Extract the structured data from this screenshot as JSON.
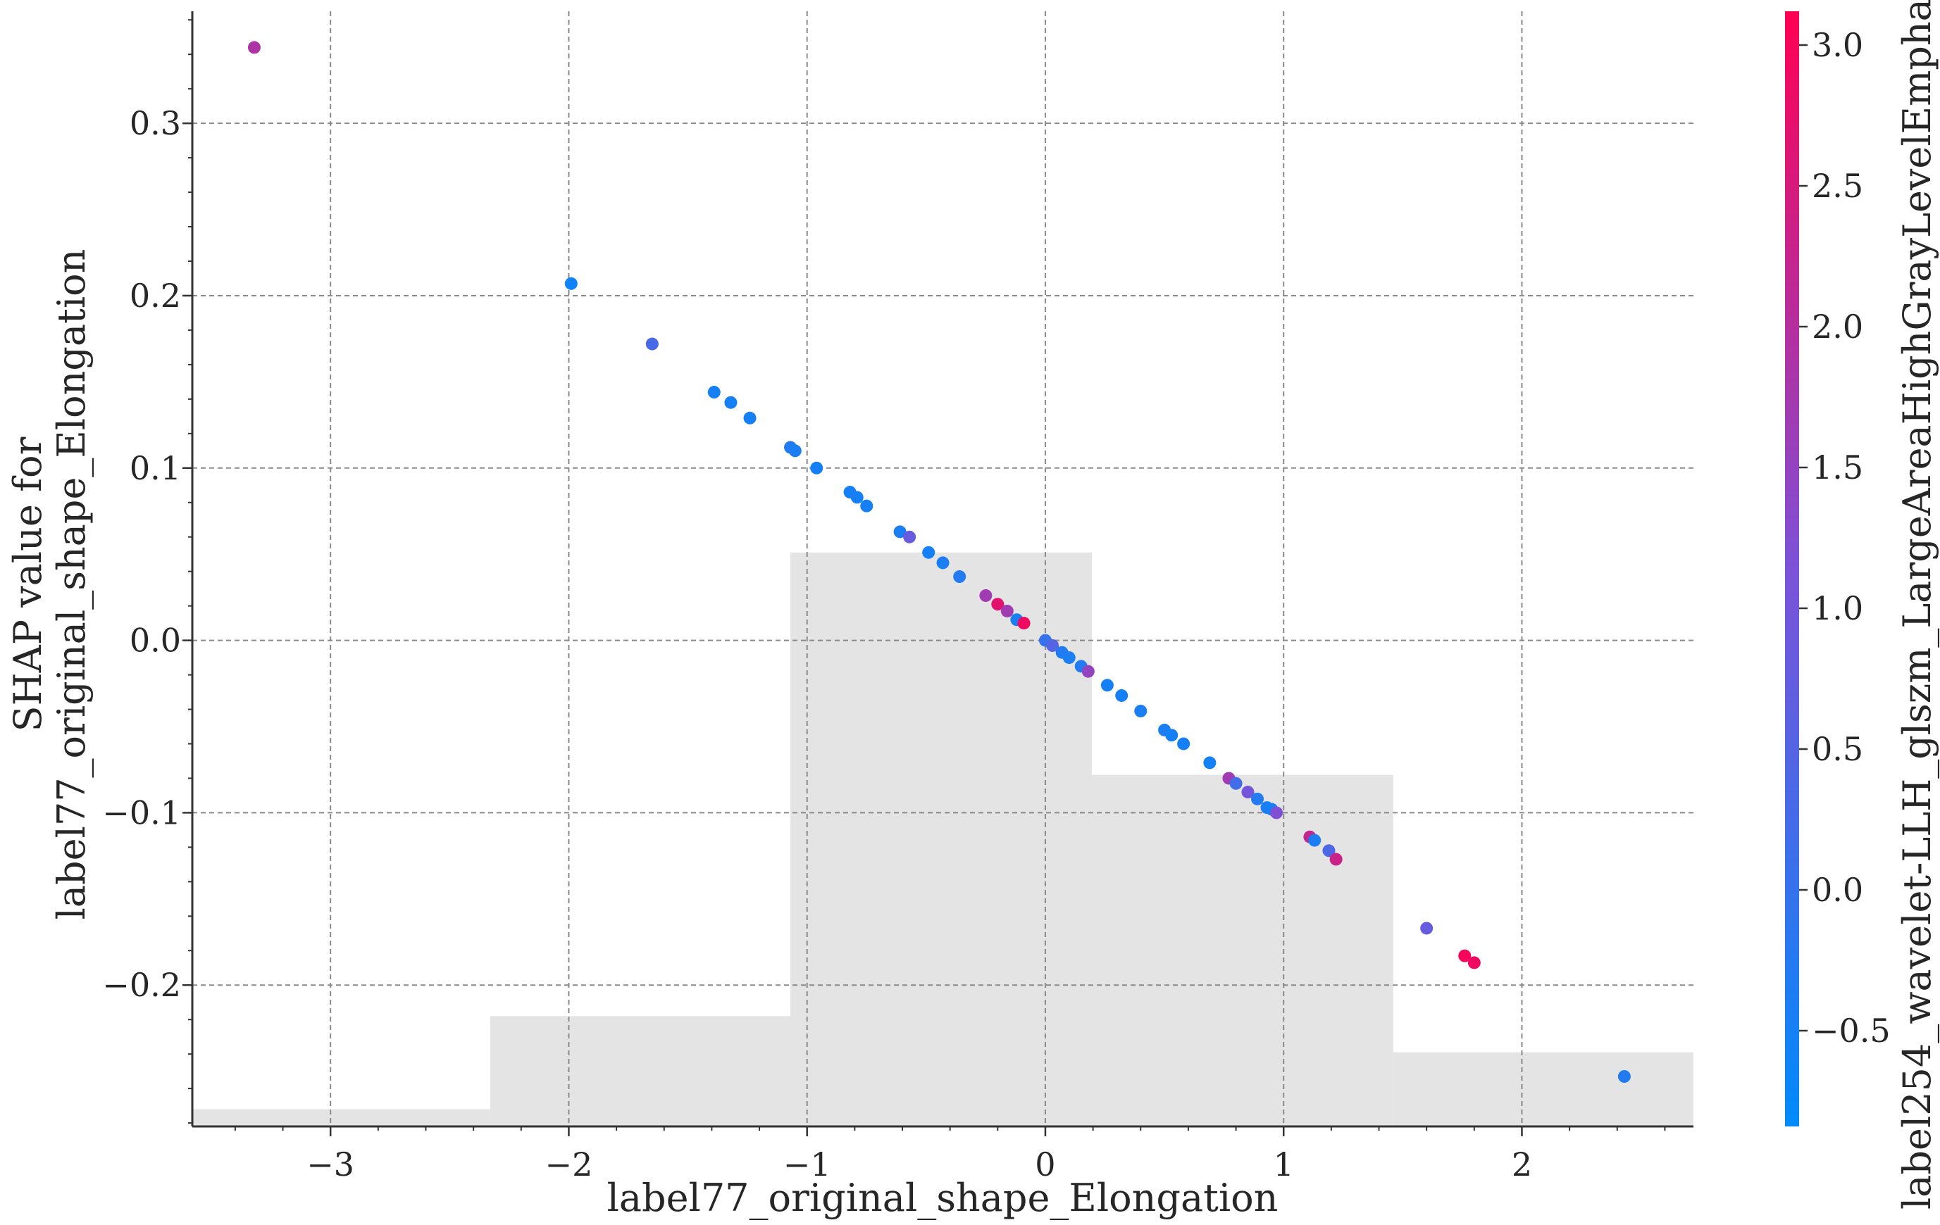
{
  "chart_data": {
    "type": "scatter",
    "xlabel": "label77_original_shape_Elongation",
    "ylabel_lines": [
      "SHAP value for",
      "label77_original_shape_Elongation"
    ],
    "xlim": [
      -3.58,
      2.72
    ],
    "ylim": [
      -0.282,
      0.365
    ],
    "x_ticks": [
      -3,
      -2,
      -1,
      0,
      1,
      2
    ],
    "x_tick_labels": [
      "−3",
      "−2",
      "−1",
      "0",
      "1",
      "2"
    ],
    "y_ticks": [
      -0.2,
      -0.1,
      0.0,
      0.1,
      0.2,
      0.3
    ],
    "y_tick_labels": [
      "−0.2",
      "−0.1",
      "0.0",
      "0.1",
      "0.2",
      "0.3"
    ],
    "grid": true,
    "histogram": {
      "color": "#e4e4e4",
      "bins": [
        {
          "x0": -3.58,
          "x1": -2.33,
          "top": -0.272
        },
        {
          "x0": -2.33,
          "x1": -1.07,
          "top": -0.218
        },
        {
          "x0": -1.07,
          "x1": 0.195,
          "top": 0.051
        },
        {
          "x0": 0.195,
          "x1": 1.46,
          "top": -0.078
        },
        {
          "x0": 1.46,
          "x1": 2.72,
          "top": -0.239
        }
      ]
    },
    "colorbar": {
      "label": "label254_wavelet-LLH_glszm_LargeAreaHighGrayLevelEmpha",
      "range": [
        -0.84,
        3.12
      ],
      "ticks": [
        -0.5,
        0.0,
        0.5,
        1.0,
        1.5,
        2.0,
        2.5,
        3.0
      ],
      "tick_labels": [
        "−0.5",
        "0.0",
        "0.5",
        "1.0",
        "1.5",
        "2.0",
        "2.5",
        "3.0"
      ],
      "color_low": "#008afb",
      "color_mid": "#7c52d8",
      "color_high": "#ff0052"
    },
    "points": [
      {
        "x": -3.32,
        "y": 0.344,
        "c": 1.9
      },
      {
        "x": -1.99,
        "y": 0.207,
        "c": -0.6
      },
      {
        "x": -1.65,
        "y": 0.172,
        "c": 0.3
      },
      {
        "x": -1.39,
        "y": 0.144,
        "c": -0.5
      },
      {
        "x": -1.32,
        "y": 0.138,
        "c": -0.5
      },
      {
        "x": -1.24,
        "y": 0.129,
        "c": -0.5
      },
      {
        "x": -1.07,
        "y": 0.112,
        "c": -0.3
      },
      {
        "x": -1.05,
        "y": 0.11,
        "c": -0.4
      },
      {
        "x": -0.96,
        "y": 0.1,
        "c": -0.5
      },
      {
        "x": -0.82,
        "y": 0.086,
        "c": -0.5
      },
      {
        "x": -0.79,
        "y": 0.083,
        "c": -0.5
      },
      {
        "x": -0.75,
        "y": 0.078,
        "c": -0.5
      },
      {
        "x": -0.61,
        "y": 0.063,
        "c": -0.4
      },
      {
        "x": -0.57,
        "y": 0.06,
        "c": 0.8
      },
      {
        "x": -0.49,
        "y": 0.051,
        "c": -0.5
      },
      {
        "x": -0.43,
        "y": 0.045,
        "c": -0.4
      },
      {
        "x": -0.36,
        "y": 0.037,
        "c": -0.3
      },
      {
        "x": -0.25,
        "y": 0.026,
        "c": 1.7
      },
      {
        "x": -0.2,
        "y": 0.021,
        "c": 2.7
      },
      {
        "x": -0.16,
        "y": 0.017,
        "c": 1.7
      },
      {
        "x": -0.12,
        "y": 0.012,
        "c": -0.4
      },
      {
        "x": -0.09,
        "y": 0.01,
        "c": 2.9
      },
      {
        "x": 0.0,
        "y": 0.0,
        "c": 0.0
      },
      {
        "x": 0.03,
        "y": -0.003,
        "c": 0.5
      },
      {
        "x": 0.07,
        "y": -0.007,
        "c": -0.3
      },
      {
        "x": 0.1,
        "y": -0.01,
        "c": -0.4
      },
      {
        "x": 0.15,
        "y": -0.015,
        "c": -0.3
      },
      {
        "x": 0.18,
        "y": -0.018,
        "c": 1.5
      },
      {
        "x": 0.26,
        "y": -0.026,
        "c": -0.5
      },
      {
        "x": 0.32,
        "y": -0.032,
        "c": -0.5
      },
      {
        "x": 0.4,
        "y": -0.041,
        "c": -0.4
      },
      {
        "x": 0.5,
        "y": -0.052,
        "c": -0.4
      },
      {
        "x": 0.53,
        "y": -0.055,
        "c": -0.5
      },
      {
        "x": 0.58,
        "y": -0.06,
        "c": -0.5
      },
      {
        "x": 0.69,
        "y": -0.071,
        "c": -0.5
      },
      {
        "x": 0.77,
        "y": -0.08,
        "c": 1.7
      },
      {
        "x": 0.8,
        "y": -0.083,
        "c": 0.2
      },
      {
        "x": 0.85,
        "y": -0.088,
        "c": 1.0
      },
      {
        "x": 0.89,
        "y": -0.092,
        "c": -0.3
      },
      {
        "x": 0.93,
        "y": -0.097,
        "c": -0.4
      },
      {
        "x": 0.95,
        "y": -0.098,
        "c": -0.5
      },
      {
        "x": 0.97,
        "y": -0.1,
        "c": 1.2
      },
      {
        "x": 1.11,
        "y": -0.114,
        "c": 2.2
      },
      {
        "x": 1.13,
        "y": -0.116,
        "c": -0.4
      },
      {
        "x": 1.19,
        "y": -0.122,
        "c": 0.4
      },
      {
        "x": 1.22,
        "y": -0.127,
        "c": 2.3
      },
      {
        "x": 1.6,
        "y": -0.167,
        "c": 0.8
      },
      {
        "x": 1.76,
        "y": -0.183,
        "c": 3.0
      },
      {
        "x": 1.8,
        "y": -0.187,
        "c": 2.9
      },
      {
        "x": 2.43,
        "y": -0.253,
        "c": -0.3
      }
    ]
  }
}
